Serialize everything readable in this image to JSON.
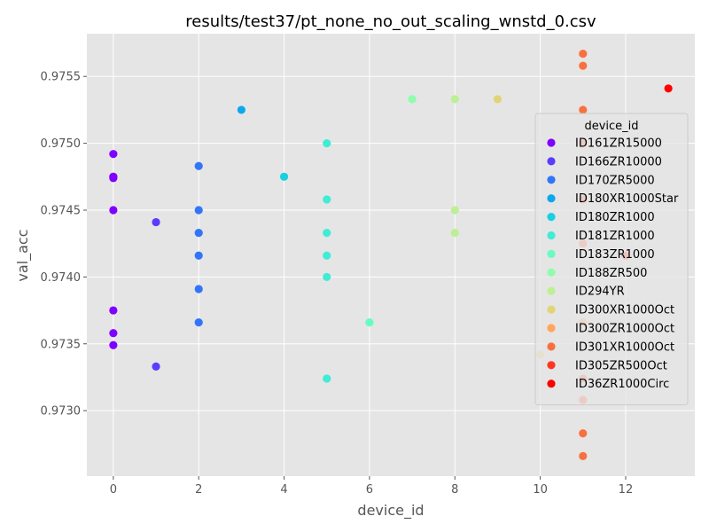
{
  "chart_data": {
    "type": "scatter",
    "title": "results/test37/pt_none_no_out_scaling_wnstd_0.csv",
    "xlabel": "device_id",
    "ylabel": "val_acc",
    "xlim": [
      -0.62,
      13.62
    ],
    "ylim": [
      0.97251,
      0.97582
    ],
    "xticks": [
      0,
      2,
      4,
      6,
      8,
      10,
      12
    ],
    "yticks": [
      0.973,
      0.9735,
      0.974,
      0.9745,
      0.975,
      0.9755
    ],
    "ytick_labels": [
      "0.9730",
      "0.9735",
      "0.9740",
      "0.9745",
      "0.9750",
      "0.9755"
    ],
    "grid": true,
    "legend": {
      "title": "device_id",
      "placement": "right"
    },
    "series": [
      {
        "name": "ID161ZR15000",
        "color": "#8000ff",
        "x": [
          0,
          0,
          0,
          0,
          0,
          0,
          0,
          0
        ],
        "y": [
          0.97492,
          0.97475,
          0.97474,
          0.9745,
          0.97375,
          0.97358,
          0.97349,
          0.97475
        ]
      },
      {
        "name": "ID166ZR10000",
        "color": "#5a3cfd",
        "x": [
          1,
          1
        ],
        "y": [
          0.97441,
          0.97333
        ]
      },
      {
        "name": "ID170ZR5000",
        "color": "#3176f8",
        "x": [
          2,
          2,
          2,
          2,
          2,
          2
        ],
        "y": [
          0.97483,
          0.9745,
          0.97433,
          0.97416,
          0.97391,
          0.97366
        ]
      },
      {
        "name": "ID180XR1000Star",
        "color": "#0ca8ed",
        "x": [
          3
        ],
        "y": [
          0.97525
        ]
      },
      {
        "name": "ID180ZR1000",
        "color": "#19cfe2",
        "x": [
          4
        ],
        "y": [
          0.97475
        ]
      },
      {
        "name": "ID181ZR1000",
        "color": "#40ecd4",
        "x": [
          5,
          5,
          5,
          5,
          5,
          5
        ],
        "y": [
          0.975,
          0.97458,
          0.97433,
          0.97416,
          0.974,
          0.97324
        ]
      },
      {
        "name": "ID183ZR1000",
        "color": "#67fcc1",
        "x": [
          6
        ],
        "y": [
          0.97366
        ]
      },
      {
        "name": "ID188ZR500",
        "color": "#8efdac",
        "x": [
          7
        ],
        "y": [
          0.97533
        ]
      },
      {
        "name": "ID294YR",
        "color": "#bdef94",
        "x": [
          8,
          8,
          8
        ],
        "y": [
          0.97533,
          0.9745,
          0.97433
        ]
      },
      {
        "name": "ID300XR1000Oct",
        "color": "#e2d474",
        "x": [
          9,
          10
        ],
        "y": [
          0.97533,
          0.97342
        ]
      },
      {
        "name": "ID300ZR1000Oct",
        "color": "#ffa65c",
        "x": [
          11
        ],
        "y": [
          0.97366
        ]
      },
      {
        "name": "ID301XR1000Oct",
        "color": "#f97040",
        "x": [
          11,
          11,
          11,
          11,
          11,
          11,
          11,
          11,
          11,
          11
        ],
        "y": [
          0.97567,
          0.97558,
          0.97525,
          0.975,
          0.97458,
          0.97425,
          0.97324,
          0.97308,
          0.97283,
          0.97266
        ]
      },
      {
        "name": "ID305ZR500Oct",
        "color": "#ff3720",
        "x": [
          12
        ],
        "y": [
          0.97416
        ]
      },
      {
        "name": "ID36ZR1000Circ",
        "color": "#ff0000",
        "x": [
          13
        ],
        "y": [
          0.97541
        ]
      }
    ]
  }
}
